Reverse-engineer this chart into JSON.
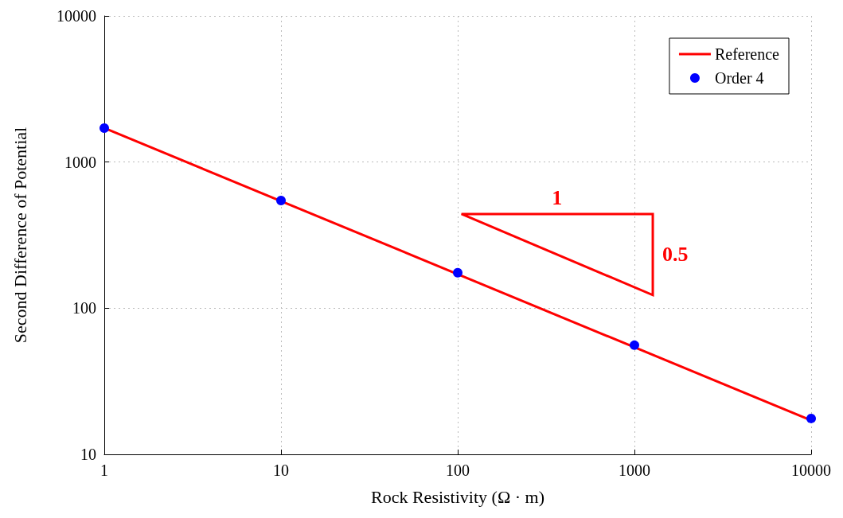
{
  "chart_data": {
    "type": "scatter",
    "xlabel": "Rock Resistivity (Ω · m)",
    "ylabel": "Second Difference of Potential",
    "log": "xy",
    "grid": true,
    "legend": "top right",
    "xlim": [
      1,
      10000
    ],
    "xticks": [
      1,
      10,
      100,
      1000,
      10000
    ],
    "ylim": [
      10,
      10000
    ],
    "yticks": [
      10,
      100,
      1000,
      10000
    ],
    "series": [
      {
        "name": "Reference",
        "type": "line",
        "color": "#ff0000",
        "marker": "none",
        "line_style": "solid",
        "x": [
          1,
          10000
        ],
        "values": [
          1708,
          17.08
        ]
      },
      {
        "name": "Order 4",
        "color": "#0000ff",
        "marker": "circle",
        "x": [
          1,
          10,
          100,
          1000,
          10000
        ],
        "values": [
          1708,
          546,
          175,
          55.8,
          17.6
        ]
      }
    ],
    "annotations": [
      "1",
      "0.5"
    ]
  }
}
